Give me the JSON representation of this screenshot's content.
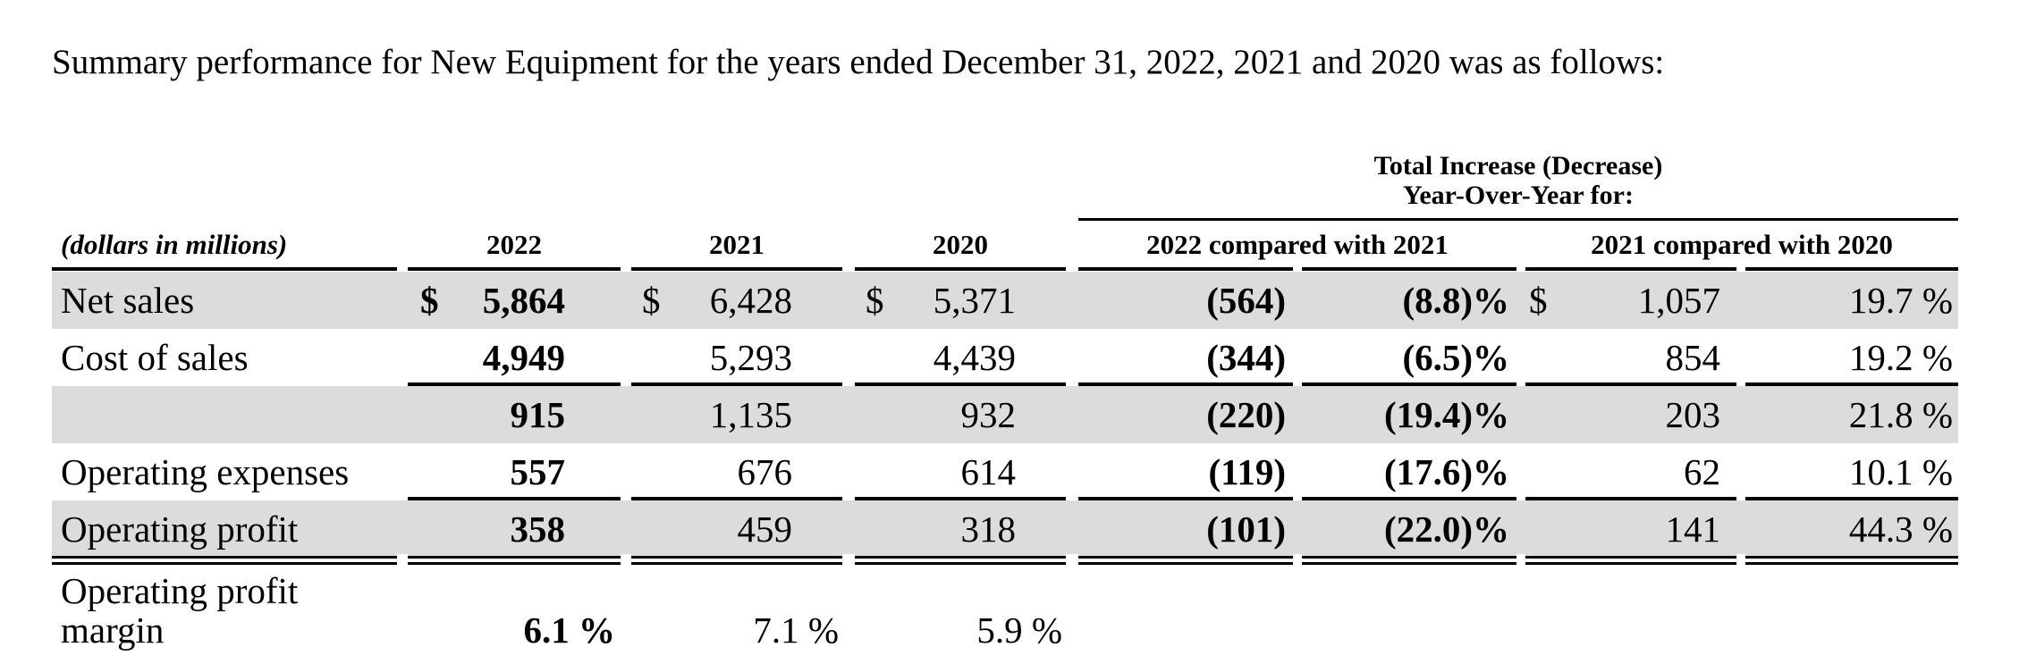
{
  "intro": "Summary performance for New Equipment for the years ended December 31, 2022, 2021 and 2020 was as follows:",
  "span_header": {
    "line1": "Total Increase (Decrease)",
    "line2": "Year-Over-Year for:"
  },
  "columns": {
    "unit": "(dollars in millions)",
    "y2022": "2022",
    "y2021": "2021",
    "y2020": "2020",
    "cmp1": "2022 compared with 2021",
    "cmp2": "2021 compared with 2020"
  },
  "currency": "$",
  "rows": [
    {
      "label": "Net sales",
      "v2022": "5,864",
      "v2021": "6,428",
      "v2020": "5,371",
      "c1_amt": "(564)",
      "c1_pct": "(8.8)%",
      "c2_amt": "1,057",
      "c2_pct": "19.7 %"
    },
    {
      "label": "Cost of sales",
      "v2022": "4,949",
      "v2021": "5,293",
      "v2020": "4,439",
      "c1_amt": "(344)",
      "c1_pct": "(6.5)%",
      "c2_amt": "854",
      "c2_pct": "19.2 %"
    },
    {
      "label": "",
      "v2022": "915",
      "v2021": "1,135",
      "v2020": "932",
      "c1_amt": "(220)",
      "c1_pct": "(19.4)%",
      "c2_amt": "203",
      "c2_pct": "21.8 %"
    },
    {
      "label": "Operating expenses",
      "v2022": "557",
      "v2021": "676",
      "v2020": "614",
      "c1_amt": "(119)",
      "c1_pct": "(17.6)%",
      "c2_amt": "62",
      "c2_pct": "10.1 %"
    },
    {
      "label": "Operating profit",
      "v2022": "358",
      "v2021": "459",
      "v2020": "318",
      "c1_amt": "(101)",
      "c1_pct": "(22.0)%",
      "c2_amt": "141",
      "c2_pct": "44.3 %"
    }
  ],
  "margin": {
    "label_line1": "Operating profit",
    "label_line2": "margin",
    "v2022": "6.1 %",
    "v2021": "7.1 %",
    "v2020": "5.9 %"
  }
}
